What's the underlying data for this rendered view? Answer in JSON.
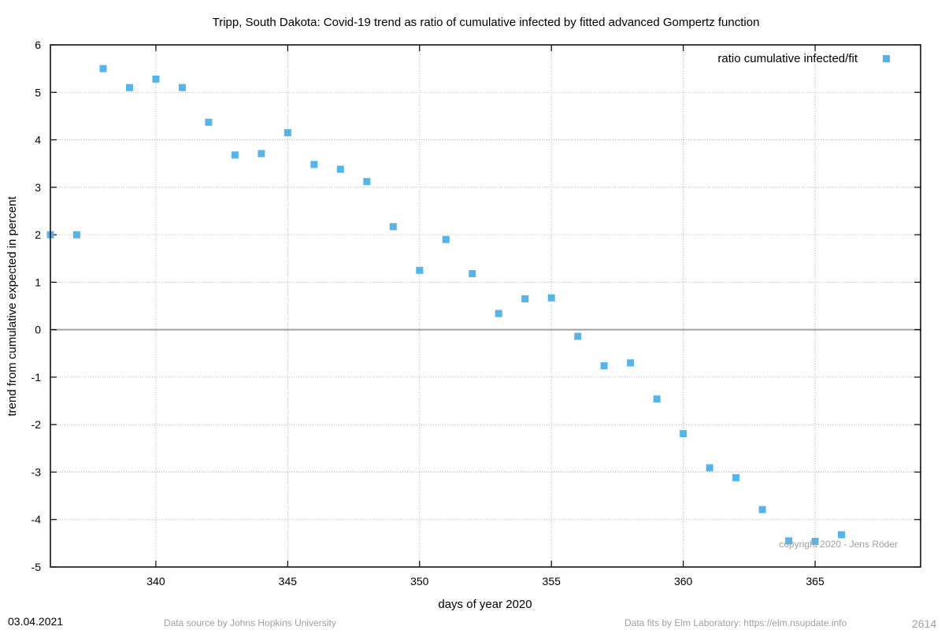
{
  "footer": {
    "date": "03.04.2021",
    "source": "Data source by Johns Hopkins University",
    "fits": "Data fits by Elm Laboratory: https://elm.nsupdate.info",
    "id": "2614"
  },
  "chart_data": {
    "type": "scatter",
    "title": "Tripp,  South Dakota: Covid-19 trend as ratio of cumulative infected by fitted advanced Gompertz function",
    "xlabel": "days of year 2020",
    "ylabel": "trend from cumulative expected in percent",
    "xlim": [
      336,
      369
    ],
    "ylim": [
      -5,
      6
    ],
    "xticks": [
      340,
      345,
      350,
      355,
      360,
      365
    ],
    "yticks": [
      -5,
      -4,
      -3,
      -2,
      -1,
      0,
      1,
      2,
      3,
      4,
      5,
      6
    ],
    "grid": true,
    "legend_position": "top-right",
    "copyright": "copyright 2020 - Jens Röder",
    "marker_color": "#56b4e9",
    "zero_line_color": "#a0a0a0",
    "series": [
      {
        "name": "ratio cumulative infected/fit",
        "x": [
          336,
          337,
          338,
          339,
          340,
          341,
          342,
          343,
          344,
          345,
          346,
          347,
          348,
          349,
          350,
          351,
          352,
          353,
          354,
          355,
          356,
          357,
          358,
          359,
          360,
          361,
          362,
          363,
          364,
          365,
          366
        ],
        "y": [
          2.0,
          2.0,
          5.5,
          5.1,
          5.28,
          5.1,
          4.37,
          3.68,
          3.71,
          4.15,
          3.48,
          3.38,
          3.12,
          2.17,
          1.25,
          1.9,
          1.18,
          0.34,
          0.65,
          0.67,
          -0.14,
          -0.76,
          -0.7,
          -1.46,
          -2.19,
          -2.91,
          -3.12,
          -3.79,
          -4.45,
          -4.46,
          -4.32
        ]
      }
    ]
  }
}
